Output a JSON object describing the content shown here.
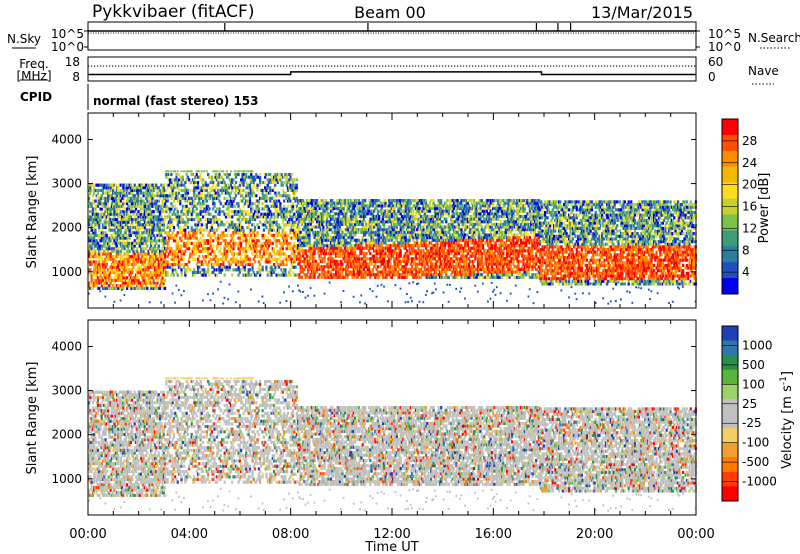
{
  "header": {
    "title": "Pykkvibaer (fitACF)",
    "beam": "Beam 00",
    "date": "13/Mar/2015"
  },
  "chart_data": [
    {
      "type": "line",
      "panel": "noise",
      "left_label": "N.Sky",
      "right_label": "N.Search",
      "left_ticks": [
        "10^5",
        "10^0"
      ],
      "right_ticks": [
        "10^5",
        "10^0"
      ],
      "spikes_hours": [
        5.4,
        11.05,
        17.7,
        18.55,
        19.05
      ]
    },
    {
      "type": "line",
      "panel": "frequency",
      "left_label_line1": "Freq.",
      "left_label_line2": "[MHz]",
      "right_label": "Nave",
      "left_ticks": [
        "18",
        "8"
      ],
      "right_ticks": [
        "60",
        "0"
      ],
      "freq_mhz_segments": [
        {
          "start": 0.0,
          "end": 8.0,
          "value": 10.5
        },
        {
          "start": 8.0,
          "end": 17.9,
          "value": 11.7
        },
        {
          "start": 17.9,
          "end": 24.0,
          "value": 10.5
        }
      ],
      "nave_level": 38
    },
    {
      "type": "table",
      "panel": "cpid",
      "label": "CPID",
      "text": "normal (fast stereo) 153"
    },
    {
      "type": "heatmap",
      "panel": "power",
      "ylabel": "Slant Range [km]",
      "y_ticks": [
        1000,
        2000,
        3000,
        4000
      ],
      "ylim": [
        180,
        4600
      ],
      "xlim_hours": [
        0,
        24
      ],
      "colorbar_label": "Power [dB]",
      "colorbar_ticks": [
        "28",
        "24",
        "20",
        "16",
        "12",
        "8",
        "4"
      ],
      "colorbar_colors": [
        "#ff0000",
        "#ff4f00",
        "#ff8c00",
        "#f5b800",
        "#ffdc1e",
        "#c8d030",
        "#7dc04a",
        "#3c9e78",
        "#2a7fa0",
        "#1f4fc0",
        "#0000e6"
      ]
    },
    {
      "type": "heatmap",
      "panel": "velocity",
      "ylabel": "Slant Range [km]",
      "y_ticks": [
        1000,
        2000,
        3000,
        4000
      ],
      "ylim": [
        180,
        4600
      ],
      "xlim_hours": [
        0,
        24
      ],
      "colorbar_label": "Velocity [m s",
      "colorbar_label_sup": "-1",
      "colorbar_label_end": "]",
      "colorbar_ticks": [
        "1000",
        "500",
        "100",
        "25",
        "-25",
        "-100",
        "-500",
        "-1000"
      ],
      "colorbar_colors": [
        "#1f3fb4",
        "#2e77a8",
        "#2b8f4a",
        "#5ab63a",
        "#9bd465",
        "#c0c0c0",
        "#c0c0c0",
        "#f2cf60",
        "#f0a030",
        "#ff7b00",
        "#ff3d00",
        "#ff0000"
      ],
      "xlabel": "Time UT",
      "x_ticks": [
        "00:00",
        "04:00",
        "08:00",
        "12:00",
        "16:00",
        "20:00",
        "00:00"
      ]
    }
  ]
}
